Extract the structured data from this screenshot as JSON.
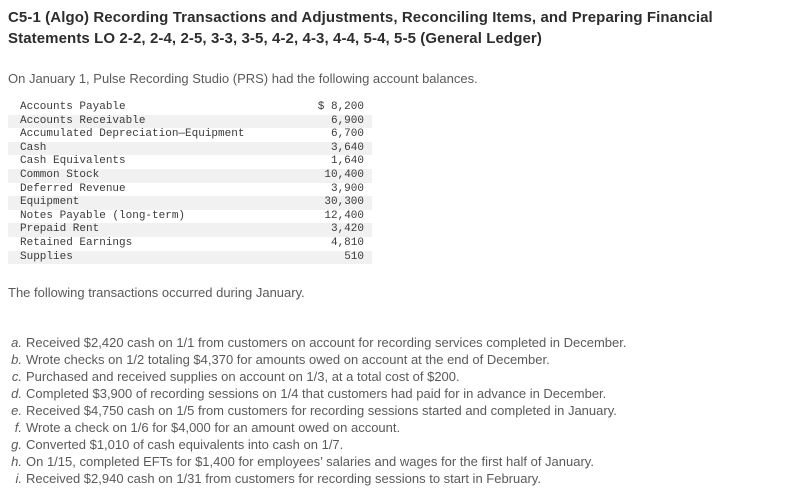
{
  "page": {
    "title": "C5-1 (Algo) Recording Transactions and Adjustments, Reconciling Items, and Preparing Financial Statements LO 2-2, 2-4, 2-5, 3-3, 3-5, 4-2, 4-3, 4-4, 5-4, 5-5 (General Ledger)",
    "intro": "On January 1, Pulse Recording Studio (PRS) had the following account balances.",
    "transactions_intro": "The following transactions occurred during January."
  },
  "balances": {
    "rows": [
      {
        "account": "Accounts Payable",
        "amount": "$ 8,200"
      },
      {
        "account": "Accounts Receivable",
        "amount": "6,900"
      },
      {
        "account": "Accumulated Depreciation—Equipment",
        "amount": "6,700"
      },
      {
        "account": "Cash",
        "amount": "3,640"
      },
      {
        "account": "Cash Equivalents",
        "amount": "1,640"
      },
      {
        "account": "Common Stock",
        "amount": "10,400"
      },
      {
        "account": "Deferred Revenue",
        "amount": "3,900"
      },
      {
        "account": "Equipment",
        "amount": "30,300"
      },
      {
        "account": "Notes Payable (long-term)",
        "amount": "12,400"
      },
      {
        "account": "Prepaid Rent",
        "amount": "3,420"
      },
      {
        "account": "Retained Earnings",
        "amount": "4,810"
      },
      {
        "account": "Supplies",
        "amount": "510"
      }
    ]
  },
  "transactions": [
    {
      "letter": "a.",
      "text": "Received $2,420 cash on 1/1 from customers on account for recording services completed in December."
    },
    {
      "letter": "b.",
      "text": "Wrote checks on 1/2 totaling $4,370 for amounts owed on account at the end of December."
    },
    {
      "letter": "c.",
      "text": "Purchased and received supplies on account on 1/3, at a total cost of $200."
    },
    {
      "letter": "d.",
      "text": "Completed $3,900 of recording sessions on 1/4 that customers had paid for in advance in December."
    },
    {
      "letter": "e.",
      "text": "Received $4,750 cash on 1/5 from customers for recording sessions started and completed in January."
    },
    {
      "letter": "f.",
      "text": "Wrote a check on 1/6 for $4,000 for an amount owed on account."
    },
    {
      "letter": "g.",
      "text": "Converted $1,010 of cash equivalents into cash on 1/7."
    },
    {
      "letter": "h.",
      "text": "On 1/15, completed EFTs for $1,400 for employees’ salaries and wages for the first half of January."
    },
    {
      "letter": "i.",
      "text": "Received $2,940 cash on 1/31 from customers for recording sessions to start in February."
    }
  ],
  "colors": {
    "background": "#ffffff",
    "title_text": "#2d2d2d",
    "body_text": "#5a5a5a",
    "table_text": "#3a3a3a",
    "row_stripe": "#f1f1f1"
  }
}
